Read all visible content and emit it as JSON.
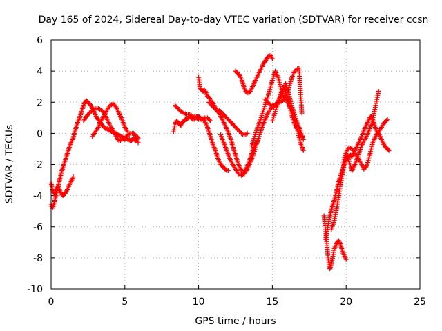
{
  "chart_data": {
    "type": "scatter",
    "title": "Day 165 of 2024, Sidereal Day-to-day VTEC variation (SDTVAR) for receiver ccsn",
    "xlabel": "GPS time / hours",
    "ylabel": "SDTVAR / TECUs",
    "xlim": [
      0,
      25
    ],
    "ylim": [
      -10,
      6
    ],
    "xticks": [
      "0",
      "5",
      "10",
      "15",
      "20",
      "25"
    ],
    "yticks": [
      "-10",
      "-8",
      "-6",
      "-4",
      "-2",
      "0",
      "2",
      "4",
      "6"
    ],
    "grid": true,
    "marker": "+",
    "color": "#ff0000",
    "series": [
      {
        "x": [
          0.0,
          0.1,
          0.2,
          0.3,
          0.4,
          0.5,
          0.6,
          0.7,
          0.8,
          0.9,
          1.0,
          1.1,
          1.2,
          1.3,
          1.4,
          1.5
        ],
        "y": [
          -3.2,
          -3.6,
          -3.9,
          -3.8,
          -3.5,
          -3.4,
          -3.7,
          -3.9,
          -4.0,
          -3.9,
          -3.8,
          -3.6,
          -3.4,
          -3.2,
          -3.0,
          -2.8
        ]
      },
      {
        "x": [
          0.0,
          0.1,
          0.2,
          0.3,
          0.4,
          0.5,
          0.6,
          0.7,
          0.8,
          0.9,
          1.0,
          1.1,
          1.2,
          1.3,
          1.4,
          1.5,
          1.6,
          1.7,
          1.8,
          1.9,
          2.0,
          2.1,
          2.2,
          2.3,
          2.4,
          2.5,
          2.6,
          2.7,
          2.8,
          2.9,
          3.0,
          3.1,
          3.2,
          3.3,
          3.4,
          3.5,
          3.6,
          3.7,
          3.8,
          3.9,
          4.0,
          4.1,
          4.2,
          4.3,
          4.4,
          4.5,
          4.6,
          4.7,
          4.8,
          4.9,
          5.0,
          5.1,
          5.2,
          5.3,
          5.4,
          5.5,
          5.6,
          5.7,
          5.8,
          5.9
        ],
        "y": [
          -4.6,
          -4.8,
          -4.5,
          -4.1,
          -3.8,
          -3.3,
          -2.9,
          -2.5,
          -2.2,
          -1.9,
          -1.6,
          -1.3,
          -1.0,
          -0.7,
          -0.5,
          -0.3,
          0.1,
          0.4,
          0.7,
          0.9,
          1.2,
          1.5,
          1.8,
          2.0,
          2.1,
          2.0,
          1.9,
          1.8,
          1.6,
          1.4,
          1.2,
          1.0,
          0.9,
          0.7,
          0.6,
          0.5,
          0.4,
          0.3,
          0.3,
          0.2,
          0.2,
          0.1,
          0.1,
          0.0,
          0.0,
          -0.1,
          -0.1,
          -0.2,
          -0.2,
          -0.3,
          -0.4,
          -0.3,
          -0.4,
          -0.4,
          -0.5,
          -0.4,
          -0.3,
          -0.5,
          -0.4,
          -0.6
        ]
      },
      {
        "x": [
          2.2,
          2.4,
          2.6,
          2.8,
          3.0,
          3.2,
          3.4,
          3.6,
          3.8,
          4.0,
          4.2,
          4.4,
          4.6,
          4.8,
          5.0,
          5.2,
          5.4,
          5.6,
          5.8,
          5.9
        ],
        "y": [
          0.8,
          1.1,
          1.3,
          1.5,
          1.6,
          1.6,
          1.5,
          1.3,
          0.9,
          0.5,
          0.2,
          -0.2,
          -0.5,
          -0.4,
          -0.3,
          -0.1,
          0.0,
          0.0,
          -0.2,
          -0.3
        ]
      },
      {
        "x": [
          2.8,
          3.0,
          3.2,
          3.4,
          3.6,
          3.8,
          4.0,
          4.2,
          4.4,
          4.6,
          4.8,
          5.0,
          5.2
        ],
        "y": [
          -0.2,
          0.1,
          0.4,
          0.8,
          1.2,
          1.5,
          1.8,
          1.9,
          1.7,
          1.3,
          0.9,
          0.4,
          0.1
        ]
      },
      {
        "x": [
          8.3,
          8.4,
          8.5,
          8.6,
          8.7,
          8.8,
          8.9,
          9.0,
          9.1,
          9.2,
          9.3,
          9.4,
          9.5,
          9.6,
          9.7,
          9.8,
          9.9,
          10.0,
          10.1,
          10.2,
          10.3,
          10.4,
          10.5,
          10.6,
          10.7,
          10.8,
          10.9,
          11.0,
          11.1,
          11.2,
          11.3,
          11.4,
          11.5,
          11.6,
          11.7,
          11.8,
          11.9,
          12.0
        ],
        "y": [
          0.1,
          0.6,
          0.8,
          0.7,
          0.6,
          0.5,
          0.7,
          0.8,
          0.9,
          0.9,
          1.0,
          1.1,
          1.0,
          0.9,
          0.9,
          1.0,
          1.1,
          1.1,
          1.0,
          0.9,
          0.9,
          0.8,
          0.6,
          0.4,
          0.1,
          -0.2,
          -0.5,
          -0.8,
          -1.0,
          -1.3,
          -1.6,
          -1.8,
          -2.0,
          -2.1,
          -2.2,
          -2.3,
          -2.4,
          -2.4
        ]
      },
      {
        "x": [
          8.4,
          8.6,
          8.8,
          9.0,
          9.2,
          9.4,
          9.6,
          9.8,
          10.0,
          10.2,
          10.4,
          10.6,
          10.8
        ],
        "y": [
          1.8,
          1.6,
          1.4,
          1.3,
          1.2,
          1.2,
          1.1,
          1.0,
          0.9,
          0.9,
          1.0,
          1.0,
          0.8
        ]
      },
      {
        "x": [
          10.0,
          10.1,
          10.2,
          10.3,
          10.4,
          10.5,
          10.6,
          10.7,
          10.8,
          10.9,
          11.0,
          11.1,
          11.2,
          11.3,
          11.4,
          11.5,
          11.6,
          11.7,
          11.8,
          11.9,
          12.0,
          12.1,
          12.2,
          12.3,
          12.4,
          12.5,
          12.6,
          12.7,
          12.8,
          12.9,
          13.0,
          13.1,
          13.2,
          13.3,
          13.4,
          13.5,
          13.6,
          13.7,
          13.8,
          13.9,
          14.0
        ],
        "y": [
          3.6,
          2.9,
          2.8,
          2.7,
          2.8,
          2.6,
          2.4,
          2.3,
          2.2,
          2.0,
          1.9,
          1.7,
          1.5,
          1.4,
          1.3,
          1.1,
          0.9,
          0.7,
          0.5,
          0.3,
          0.1,
          -0.2,
          -0.4,
          -0.8,
          -1.1,
          -1.4,
          -1.7,
          -2.0,
          -2.2,
          -2.4,
          -2.6,
          -2.5,
          -2.3,
          -2.1,
          -1.9,
          -1.6,
          -1.3,
          -1.0,
          -0.8,
          -0.6,
          -0.5
        ]
      },
      {
        "x": [
          10.7,
          10.9,
          11.1,
          11.3,
          11.5,
          11.7,
          11.9,
          12.1,
          12.3,
          12.5,
          12.7,
          12.9,
          13.1,
          13.3
        ],
        "y": [
          2.0,
          1.8,
          1.6,
          1.5,
          1.4,
          1.2,
          1.0,
          0.8,
          0.6,
          0.4,
          0.2,
          0.0,
          -0.1,
          0.0
        ]
      },
      {
        "x": [
          11.5,
          11.7,
          11.9,
          12.1,
          12.3,
          12.5,
          12.7,
          12.9,
          13.1,
          13.3,
          13.5,
          13.7,
          13.9,
          14.1,
          14.3,
          14.5,
          14.7,
          14.9,
          15.1,
          15.3,
          15.5,
          15.7,
          15.9,
          16.1,
          16.3,
          16.5,
          16.7,
          16.9,
          17.1
        ],
        "y": [
          -0.1,
          -0.6,
          -1.1,
          -1.6,
          -2.0,
          -2.3,
          -2.6,
          -2.7,
          -2.6,
          -2.3,
          -1.9,
          -1.4,
          -0.8,
          -0.2,
          0.4,
          0.9,
          1.3,
          1.6,
          1.8,
          1.9,
          2.0,
          2.1,
          2.2,
          1.9,
          1.5,
          0.9,
          0.2,
          -0.6,
          -1.1
        ]
      },
      {
        "x": [
          12.5,
          12.6,
          12.7,
          12.8,
          12.9,
          13.0,
          13.1,
          13.2,
          13.3,
          13.4,
          13.5,
          13.6,
          13.7,
          13.8,
          13.9,
          14.0,
          14.1,
          14.2,
          14.3,
          14.4,
          14.5,
          14.6,
          14.7,
          14.8,
          14.9,
          15.0
        ],
        "y": [
          4.0,
          3.9,
          3.8,
          3.7,
          3.5,
          3.2,
          2.9,
          2.7,
          2.6,
          2.6,
          2.7,
          2.9,
          3.1,
          3.3,
          3.5,
          3.7,
          3.9,
          4.1,
          4.3,
          4.5,
          4.6,
          4.8,
          4.9,
          5.0,
          5.0,
          4.8
        ]
      },
      {
        "x": [
          13.6,
          13.8,
          14.0,
          14.2,
          14.4,
          14.6,
          14.8,
          15.0,
          15.2,
          15.4,
          15.6,
          15.8,
          16.0,
          16.2,
          16.4,
          16.6,
          16.8,
          17.0
        ],
        "y": [
          -0.8,
          -0.2,
          0.4,
          0.9,
          1.5,
          2.1,
          2.7,
          3.4,
          4.0,
          3.6,
          2.8,
          2.2,
          2.6,
          3.2,
          3.8,
          4.1,
          4.2,
          1.3
        ]
      },
      {
        "x": [
          14.5,
          14.7,
          14.9,
          15.1,
          15.3,
          15.5,
          15.7,
          15.9,
          16.1,
          16.3,
          16.5,
          16.7,
          16.9,
          17.1
        ],
        "y": [
          2.2,
          2.0,
          1.8,
          1.7,
          1.9,
          2.3,
          2.8,
          3.2,
          2.6,
          1.8,
          1.2,
          0.6,
          0.2,
          -0.4
        ]
      },
      {
        "x": [
          15.0,
          15.2,
          15.4,
          15.6,
          15.8,
          16.0,
          16.2,
          16.4,
          16.6,
          16.8,
          17.0
        ],
        "y": [
          0.8,
          1.4,
          2.0,
          2.6,
          3.0,
          2.4,
          1.6,
          0.9,
          0.4,
          0.1,
          -0.2
        ]
      },
      {
        "x": [
          18.5,
          18.6,
          18.7,
          18.8,
          18.9,
          19.0,
          19.1,
          19.2,
          19.3,
          19.4,
          19.5,
          19.6,
          19.7,
          19.8,
          19.9,
          20.0
        ],
        "y": [
          -5.3,
          -6.2,
          -7.2,
          -8.2,
          -8.7,
          -8.4,
          -7.9,
          -7.4,
          -7.2,
          -7.0,
          -6.9,
          -7.1,
          -7.4,
          -7.7,
          -7.9,
          -8.1
        ]
      },
      {
        "x": [
          18.6,
          18.7,
          18.8,
          18.9,
          19.0,
          19.1,
          19.2,
          19.3,
          19.4,
          19.5,
          19.6,
          19.7,
          19.8,
          19.9,
          20.0,
          20.1,
          20.2,
          20.3,
          20.4,
          20.5,
          20.6,
          20.7,
          20.8,
          20.9,
          21.0,
          21.1,
          21.2,
          21.3,
          21.4,
          21.5,
          21.6,
          21.7,
          21.8,
          21.9,
          22.0,
          22.1,
          22.2,
          22.3,
          22.4,
          22.5,
          22.6,
          22.7,
          22.8,
          22.9
        ],
        "y": [
          -6.8,
          -6.3,
          -5.8,
          -5.3,
          -4.9,
          -4.6,
          -4.3,
          -3.9,
          -3.5,
          -3.1,
          -2.8,
          -2.5,
          -2.2,
          -1.9,
          -1.7,
          -1.6,
          -1.5,
          -1.4,
          -1.5,
          -1.3,
          -1.1,
          -0.9,
          -0.7,
          -0.5,
          -0.3,
          -0.1,
          0.2,
          0.4,
          0.6,
          0.8,
          1.0,
          1.1,
          0.9,
          0.6,
          0.3,
          0.1,
          0.0,
          -0.2,
          -0.4,
          -0.6,
          -0.8,
          -0.9,
          -1.0,
          -1.1
        ]
      },
      {
        "x": [
          19.0,
          19.2,
          19.4,
          19.6,
          19.8,
          20.0,
          20.2,
          20.4,
          20.6,
          20.8,
          21.0,
          21.2,
          21.4,
          21.6,
          21.8,
          22.0,
          22.2
        ],
        "y": [
          -6.2,
          -5.6,
          -4.6,
          -3.4,
          -2.3,
          -1.3,
          -1.8,
          -2.4,
          -2.0,
          -1.5,
          -0.9,
          -0.5,
          -0.2,
          0.3,
          0.9,
          1.8,
          2.7
        ]
      },
      {
        "x": [
          19.8,
          20.0,
          20.2,
          20.4,
          20.6,
          20.8,
          21.0,
          21.2,
          21.4,
          21.6,
          21.8,
          22.0,
          22.2,
          22.4,
          22.6,
          22.8
        ],
        "y": [
          -1.9,
          -1.2,
          -0.9,
          -1.0,
          -1.3,
          -1.6,
          -1.9,
          -2.3,
          -2.1,
          -1.4,
          -0.6,
          -0.2,
          0.1,
          0.4,
          0.7,
          0.9
        ]
      }
    ]
  }
}
